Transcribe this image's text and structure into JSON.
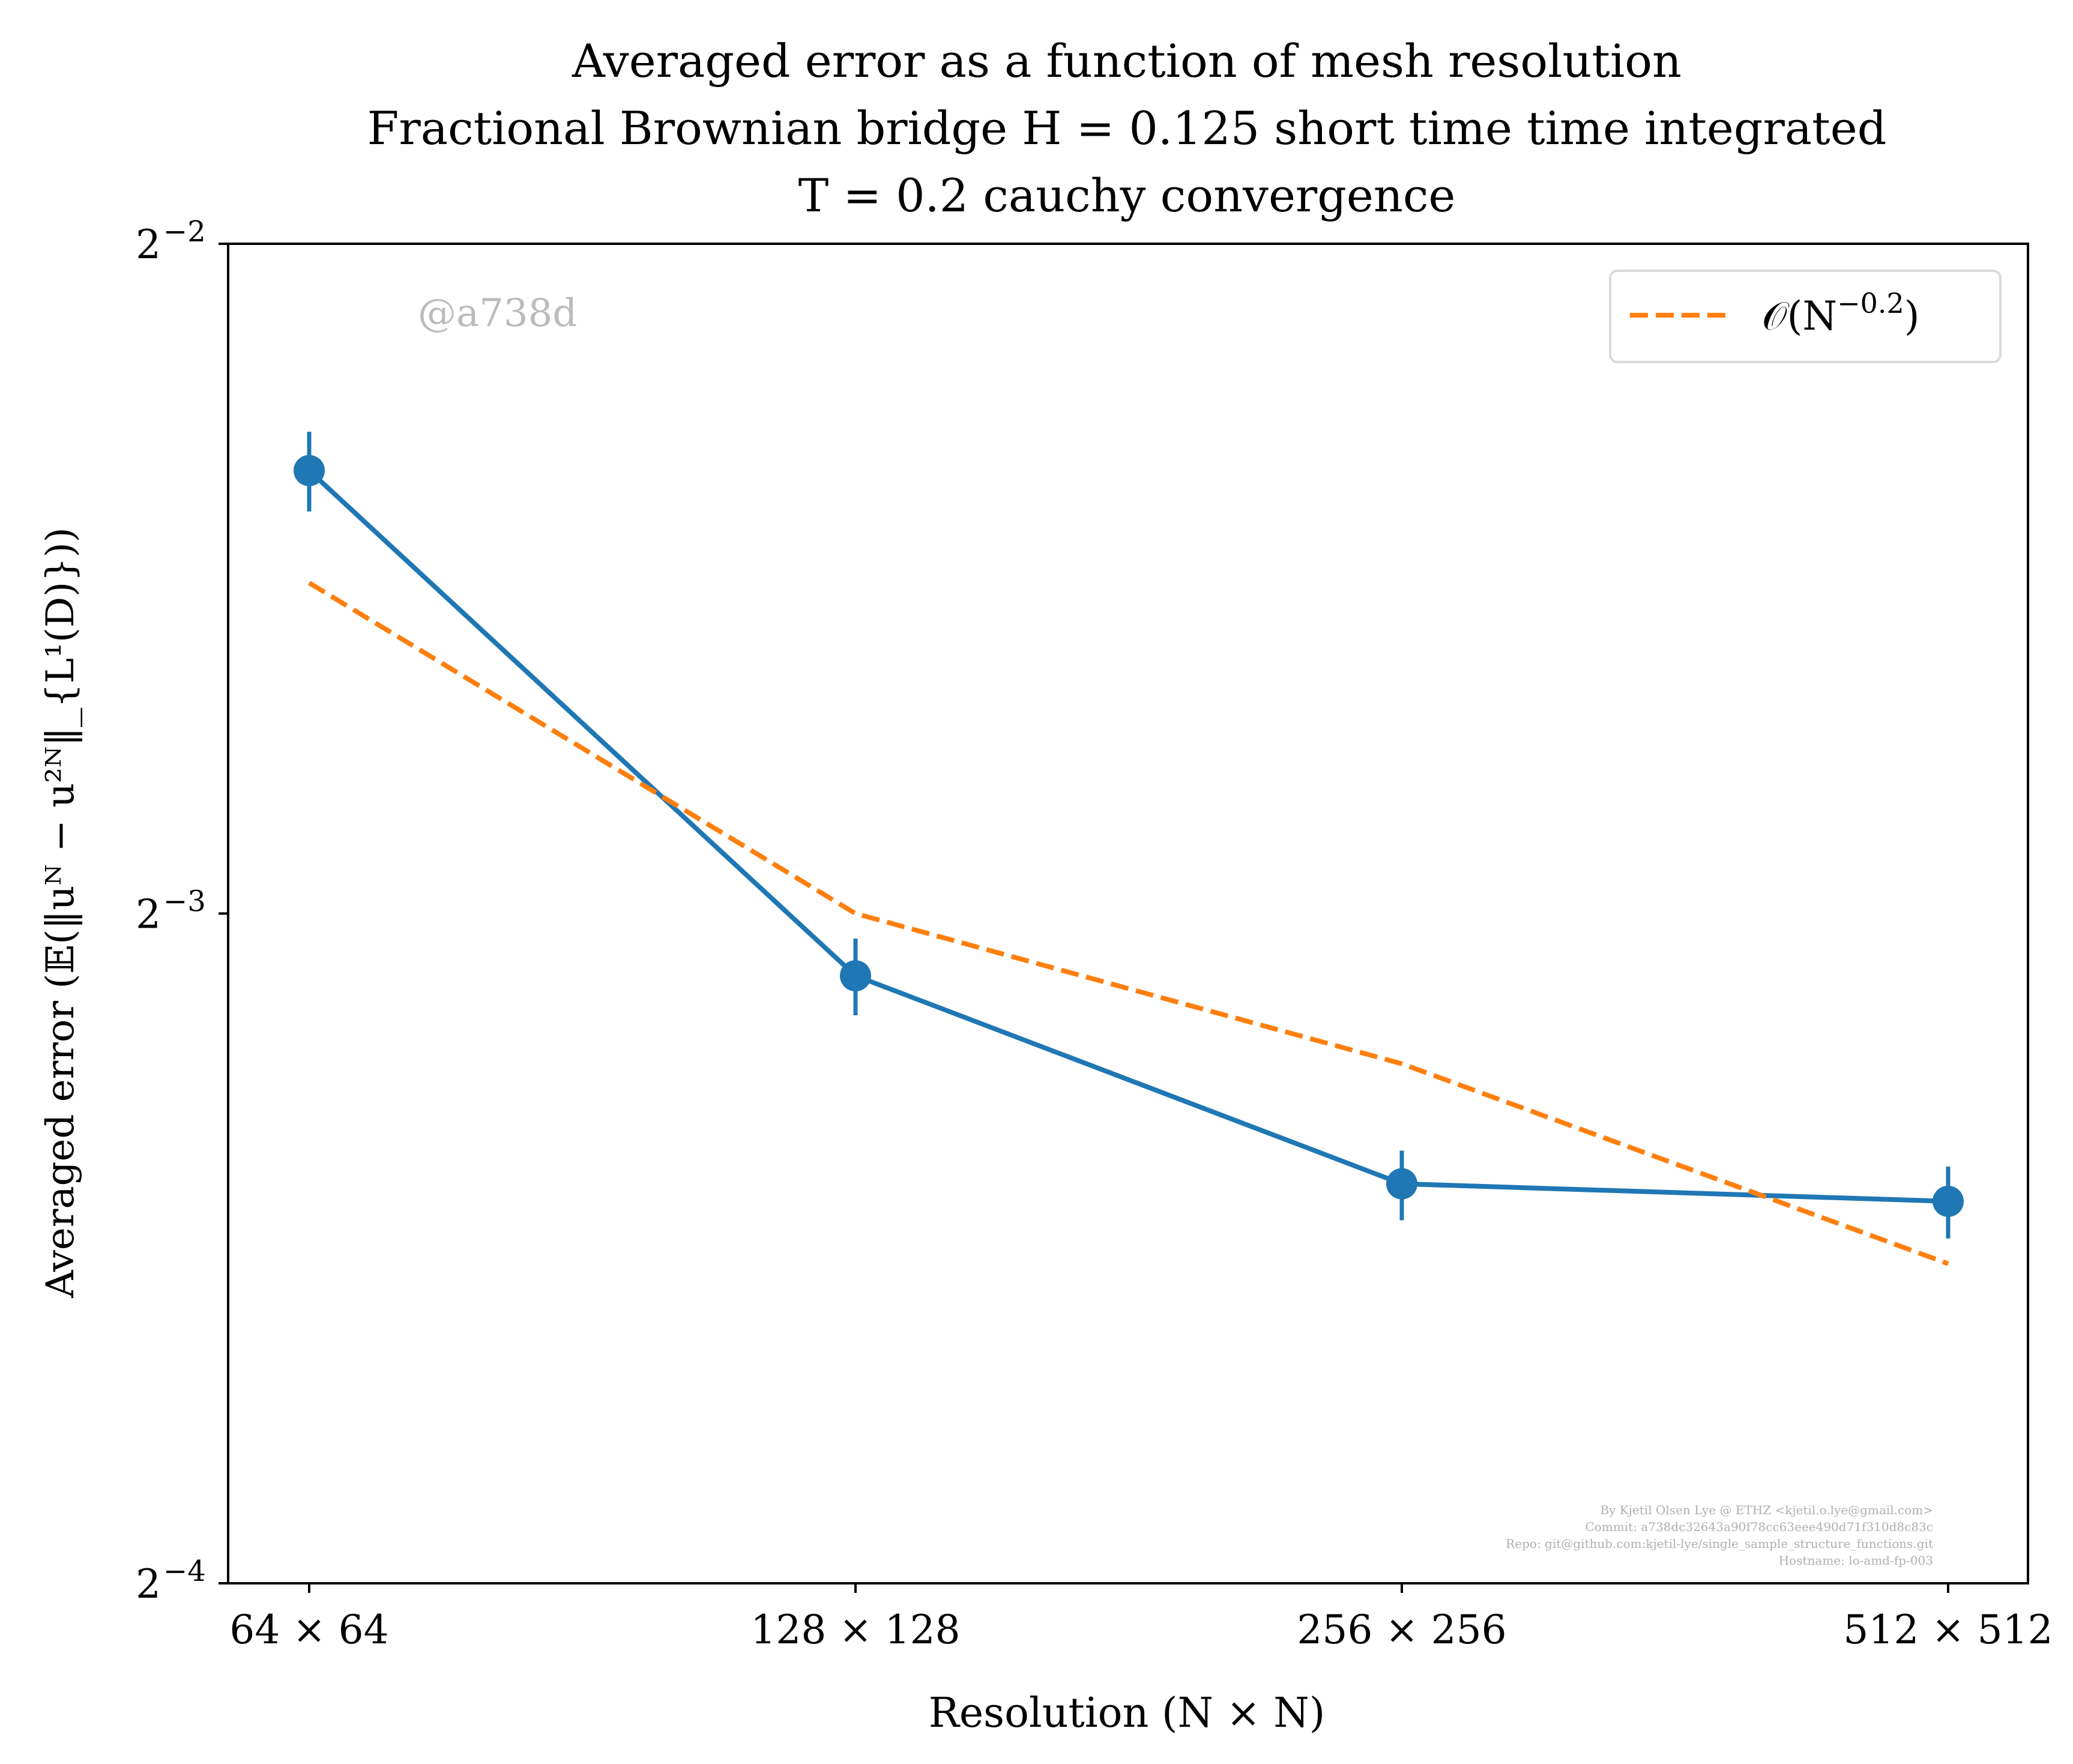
{
  "chart_data": {
    "type": "line",
    "title_lines": [
      "Averaged error as a function of mesh resolution",
      "Fractional Brownian bridge H = 0.125 short time time integrated",
      "T = 0.2 cauchy convergence"
    ],
    "xlabel": "Resolution (N × N)",
    "ylabel": "Averaged error (𝔼(‖uᴺ − u²ᴺ‖_{L¹(D)}))",
    "x_scale": "log2",
    "y_scale": "log2",
    "categories": [
      "64 × 64",
      "128 × 128",
      "256 × 256",
      "512 × 512"
    ],
    "x": [
      64,
      128,
      256,
      512
    ],
    "ylim_exponents": [
      -4,
      -2
    ],
    "yticks": [
      {
        "exp": -2,
        "label": "2",
        "sup": "−2"
      },
      {
        "exp": -3,
        "label": "2",
        "sup": "−3"
      },
      {
        "exp": -4,
        "label": "2",
        "sup": "−4"
      }
    ],
    "series": [
      {
        "color": "#1f77b4",
        "style": "solid",
        "marker": "circle",
        "values": [
          0.1977,
          0.1172,
          0.0945,
          0.0928
        ],
        "err_low": [
          0.1895,
          0.1125,
          0.091,
          0.0893
        ],
        "err_high": [
          0.2058,
          0.1218,
          0.0978,
          0.0962
        ]
      },
      {
        "name": "𝒪(N^{−0.2})",
        "color": "#ff7f0e",
        "style": "dashed",
        "values": [
          0.176,
          0.125,
          0.107,
          0.087
        ]
      }
    ],
    "legend": {
      "position": "top-right",
      "label_prefix": "𝒪(N",
      "label_sup": "−0.2",
      "label_suffix": ")"
    },
    "grid": false,
    "annotations": {
      "commit_tag": "@a738d",
      "footer_lines": [
        "By Kjetil Olsen Lye @ ETHZ <kjetil.o.lye@gmail.com>",
        "Commit: a738dc32643a90f78cc63eee490d71f310d8c83c",
        "Repo: git@github.com:kjetil-lye/single_sample_structure_functions.git",
        "Hostname: lo-amd-fp-003"
      ]
    }
  }
}
